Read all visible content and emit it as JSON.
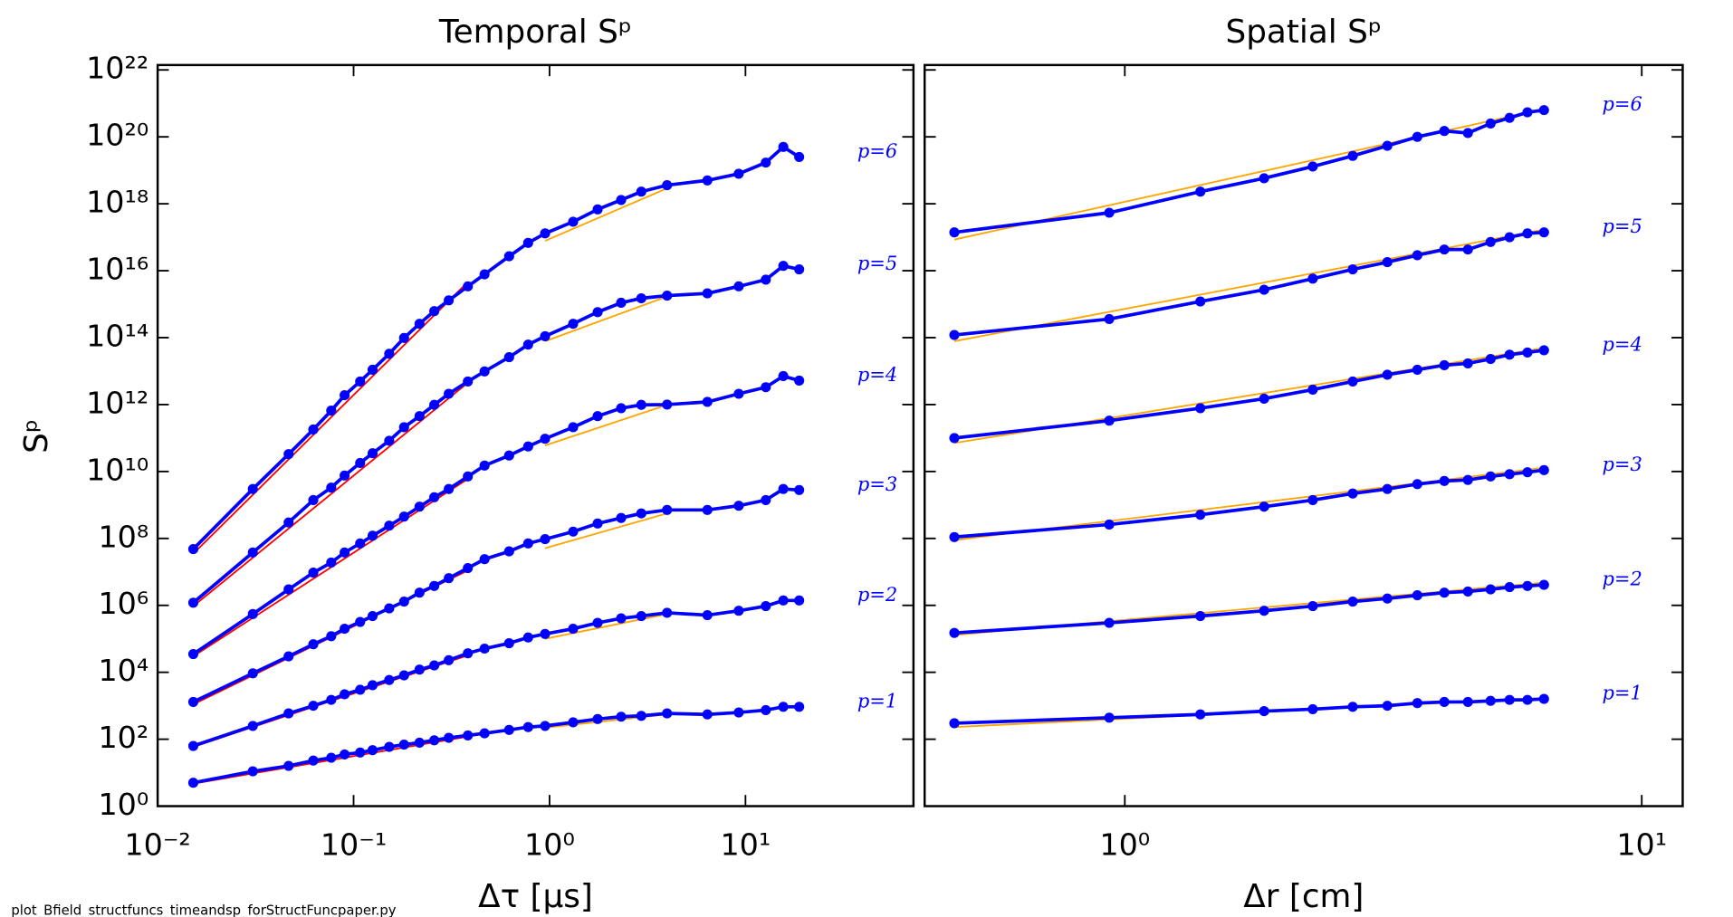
{
  "chart_data": [
    {
      "type": "line",
      "title": "Temporal Sᵖ",
      "xlabel": "Δτ [μs]",
      "ylabel": "Sᵖ",
      "xscale": "log",
      "yscale": "log",
      "xlim": [
        0.01,
        72
      ],
      "ylim": [
        1,
        1.4e+22
      ],
      "xticks": [
        {
          "value": 0.01,
          "label": "10⁻²"
        },
        {
          "value": 0.1,
          "label": "10⁻¹"
        },
        {
          "value": 1,
          "label": "10⁰"
        },
        {
          "value": 10,
          "label": "10¹"
        }
      ],
      "yticks": [
        {
          "value": 1,
          "label": "10⁰"
        },
        {
          "value": 100,
          "label": "10²"
        },
        {
          "value": 10000,
          "label": "10⁴"
        },
        {
          "value": 1000000.0,
          "label": "10⁶"
        },
        {
          "value": 100000000.0,
          "label": "10⁸"
        },
        {
          "value": 10000000000.0,
          "label": "10¹⁰"
        },
        {
          "value": 1000000000000.0,
          "label": "10¹²"
        },
        {
          "value": 100000000000000.0,
          "label": "10¹⁴"
        },
        {
          "value": 1e+16,
          "label": "10¹⁶"
        },
        {
          "value": 1e+18,
          "label": "10¹⁸"
        },
        {
          "value": 1e+20,
          "label": "10²⁰"
        },
        {
          "value": 1e+22,
          "label": "10²²"
        }
      ],
      "ytick_labels": true,
      "x": [
        0.0152,
        0.0306,
        0.0466,
        0.0623,
        0.0769,
        0.09,
        0.108,
        0.125,
        0.152,
        0.181,
        0.217,
        0.258,
        0.306,
        0.383,
        0.466,
        0.622,
        0.778,
        0.949,
        1.32,
        1.76,
        2.32,
        2.94,
        3.98,
        6.39,
        9.24,
        12.7,
        15.6,
        18.8
      ],
      "series": [
        {
          "name": "p=1",
          "color": "#0000ff",
          "values": [
            5.0,
            11,
            16,
            23,
            28,
            35,
            40,
            47,
            59,
            69,
            79,
            93,
            110,
            130,
            150,
            190,
            230,
            250,
            320,
            400,
            470,
            500,
            590,
            550,
            630,
            740,
            930,
            930
          ]
        },
        {
          "name": "p=2",
          "color": "#0000ff",
          "values": [
            63,
            250,
            590,
            1000,
            1500,
            2200,
            3000,
            4100,
            5900,
            8100,
            12000,
            16000,
            23000,
            37000,
            51000,
            74000,
            110000,
            140000,
            200000,
            300000,
            410000,
            480000,
            600000,
            510000,
            690000,
            950000,
            1400000.0,
            1400000.0
          ]
        },
        {
          "name": "p=3",
          "color": "#0000ff",
          "values": [
            1300,
            9300,
            30000,
            69000,
            120000,
            200000,
            320000,
            480000,
            810000,
            1300000.0,
            2400000.0,
            3800000.0,
            6500000.0,
            13000000.0,
            24000000.0,
            41000000.0,
            71000000.0,
            95000000.0,
            160000000.0,
            280000000.0,
            410000000.0,
            560000000.0,
            710000000.0,
            710000000.0,
            950000000.0,
            1400000000.0,
            3000000000.0,
            2800000000.0
          ]
        },
        {
          "name": "p=4",
          "color": "#0000ff",
          "values": [
            35000,
            550000,
            3000000.0,
            9500000.0,
            19000000.0,
            38000000.0,
            71000000.0,
            120000000.0,
            240000000.0,
            450000000.0,
            890000000.0,
            1700000000.0,
            3000000000.0,
            7100000000.0,
            15000000000.0,
            30000000000.0,
            56000000000.0,
            95000000000.0,
            210000000000.0,
            450000000000.0,
            780000000000.0,
            980000000000.0,
            1000000000000.0,
            1200000000000.0,
            2100000000000.0,
            3300000000000.0,
            7100000000000.0,
            5200000000000.0
          ]
        },
        {
          "name": "p=5",
          "color": "#0000ff",
          "values": [
            1200000.0,
            38000000.0,
            300000000.0,
            1400000000.0,
            3300000000.0,
            7600000000.0,
            18000000000.0,
            35000000000.0,
            83000000000.0,
            210000000000.0,
            450000000000.0,
            980000000000.0,
            2100000000000.0,
            4900000000000.0,
            9800000000000.0,
            26000000000000.0,
            62000000000000.0,
            110000000000000.0,
            260000000000000.0,
            580000000000000.0,
            1100000000000000.0,
            1500000000000000.0,
            1800000000000000.0,
            2100000000000000.0,
            3400000000000000.0,
            5400000000000000.0,
            1.4e+16,
            1.1e+16
          ]
        },
        {
          "name": "p=6",
          "color": "#0000ff",
          "values": [
            48000000.0,
            3000000000.0,
            33000000000.0,
            180000000000.0,
            660000000000.0,
            1900000000000.0,
            4900000000000.0,
            11000000000000.0,
            33000000000000.0,
            98000000000000.0,
            260000000000000.0,
            620000000000000.0,
            1300000000000000.0,
            3400000000000000.0,
            7800000000000000.0,
            2.7e+16,
            6.8e+16,
            1.3e+17,
            2.9e+17,
            6.8e+17,
            1.3e+18,
            2.3e+18,
            3.6e+18,
            5e+18,
            7.9e+18,
            1.7e+19,
            5e+19,
            2.5e+19
          ]
        }
      ],
      "fits": [
        {
          "color": "#ff0000",
          "x": [
            0.0152,
            0.383
          ],
          "values": [
            4.7,
            120
          ]
        },
        {
          "color": "#ff0000",
          "x": [
            0.0152,
            0.383
          ],
          "values": [
            59,
            32000
          ]
        },
        {
          "color": "#ff0000",
          "x": [
            0.0152,
            0.383
          ],
          "values": [
            1100,
            11000000.0
          ]
        },
        {
          "color": "#ff0000",
          "x": [
            0.0152,
            0.383
          ],
          "values": [
            30000,
            6000000000.0
          ]
        },
        {
          "color": "#ff0000",
          "x": [
            0.0152,
            0.383
          ],
          "values": [
            950000,
            4500000000000.0
          ]
        },
        {
          "color": "#ff0000",
          "x": [
            0.0152,
            0.383
          ],
          "values": [
            35000000.0,
            4600000000000000.0
          ]
        },
        {
          "color": "#ffa500",
          "x": [
            0.949,
            3.98
          ],
          "values": [
            220,
            550
          ]
        },
        {
          "color": "#ffa500",
          "x": [
            0.949,
            3.98
          ],
          "values": [
            100000,
            550000
          ]
        },
        {
          "color": "#ffa500",
          "x": [
            0.949,
            3.98
          ],
          "values": [
            51000000.0,
            560000000.0
          ]
        },
        {
          "color": "#ffa500",
          "x": [
            0.949,
            3.98
          ],
          "values": [
            60000000000.0,
            980000000000.0
          ]
        },
        {
          "color": "#ffa500",
          "x": [
            0.949,
            3.98
          ],
          "values": [
            78000000000000.0,
            1700000000000000.0
          ]
        },
        {
          "color": "#ffa500",
          "x": [
            0.949,
            3.98
          ],
          "values": [
            7.8e+16,
            2.9e+18
          ]
        }
      ]
    },
    {
      "type": "line",
      "title": "Spatial Sᵖ",
      "xlabel": "Δr [cm]",
      "xscale": "log",
      "yscale": "log",
      "xlim": [
        0.41,
        12
      ],
      "ylim": [
        1,
        1.4e+22
      ],
      "xticks": [
        {
          "value": 1,
          "label": "10⁰"
        },
        {
          "value": 10,
          "label": "10¹"
        }
      ],
      "yticks": [
        1,
        100,
        10000,
        1000000.0,
        100000000.0,
        10000000000.0,
        1000000000000.0,
        100000000000000.0,
        1e+16,
        1e+18,
        1e+20,
        1e+22
      ],
      "ytick_labels": false,
      "x": [
        0.468,
        0.933,
        1.4,
        1.86,
        2.31,
        2.76,
        3.22,
        3.68,
        4.15,
        4.61,
        5.1,
        5.55,
        6.01,
        6.47
      ],
      "series": [
        {
          "name": "p=1",
          "color": "#0000ff",
          "values": [
            300,
            440,
            550,
            690,
            790,
            930,
            1000,
            1200,
            1300,
            1300,
            1400,
            1500,
            1500,
            1600
          ]
        },
        {
          "name": "p=2",
          "color": "#0000ff",
          "values": [
            150000,
            300000,
            480000,
            690000,
            950000,
            1300000.0,
            1600000.0,
            2000000.0,
            2400000.0,
            2600000.0,
            3000000.0,
            3500000.0,
            3800000.0,
            4100000.0
          ]
        },
        {
          "name": "p=3",
          "color": "#0000ff",
          "values": [
            110000000.0,
            260000000.0,
            510000000.0,
            890000000.0,
            1400000000.0,
            2200000000.0,
            3000000000.0,
            4200000000.0,
            5200000000.0,
            5600000000.0,
            7100000000.0,
            8300000000.0,
            9500000000.0,
            11000000000.0
          ]
        },
        {
          "name": "p=4",
          "color": "#0000ff",
          "values": [
            100000000000.0,
            330000000000.0,
            780000000000.0,
            1500000000000.0,
            2800000000000.0,
            4900000000000.0,
            7800000000000.0,
            11000000000000.0,
            15000000000000.0,
            17000000000000.0,
            23000000000000.0,
            31000000000000.0,
            36000000000000.0,
            42000000000000.0
          ]
        },
        {
          "name": "p=5",
          "color": "#0000ff",
          "values": [
            120000000000000.0,
            360000000000000.0,
            1200000000000000.0,
            2700000000000000.0,
            5800000000000000.0,
            1.1e+16,
            1.8e+16,
            2.9e+16,
            4.3e+16,
            4.3e+16,
            7.2e+16,
            1e+17,
            1.3e+17,
            1.4e+17
          ]
        },
        {
          "name": "p=6",
          "color": "#0000ff",
          "values": [
            1.4e+17,
            5.4e+17,
            2.3e+18,
            5.8e+18,
            1.3e+19,
            2.7e+19,
            5.4e+19,
            1e+20,
            1.5e+20,
            1.3e+20,
            2.5e+20,
            3.7e+20,
            5.4e+20,
            6.3e+20
          ]
        }
      ],
      "fits": [
        {
          "color": "#ffa500",
          "x": [
            0.468,
            6.47
          ],
          "values": [
            230,
            1700
          ]
        },
        {
          "color": "#ffa500",
          "x": [
            0.468,
            6.47
          ],
          "values": [
            130000,
            4800000.0
          ]
        },
        {
          "color": "#ffa500",
          "x": [
            0.468,
            6.47
          ],
          "values": [
            89000000.0,
            13000000000.0
          ]
        },
        {
          "color": "#ffa500",
          "x": [
            0.468,
            6.47
          ],
          "values": [
            71000000000.0,
            49000000000000.0
          ]
        },
        {
          "color": "#ffa500",
          "x": [
            0.468,
            6.47
          ],
          "values": [
            78000000000000.0,
            1.7e+17
          ]
        },
        {
          "color": "#ffa500",
          "x": [
            0.468,
            6.47
          ],
          "values": [
            8.5e+16,
            6.8e+20
          ]
        }
      ]
    }
  ],
  "footer": "plot_Bfield_structfuncs_timeandsp_forStructFuncpaper.py"
}
